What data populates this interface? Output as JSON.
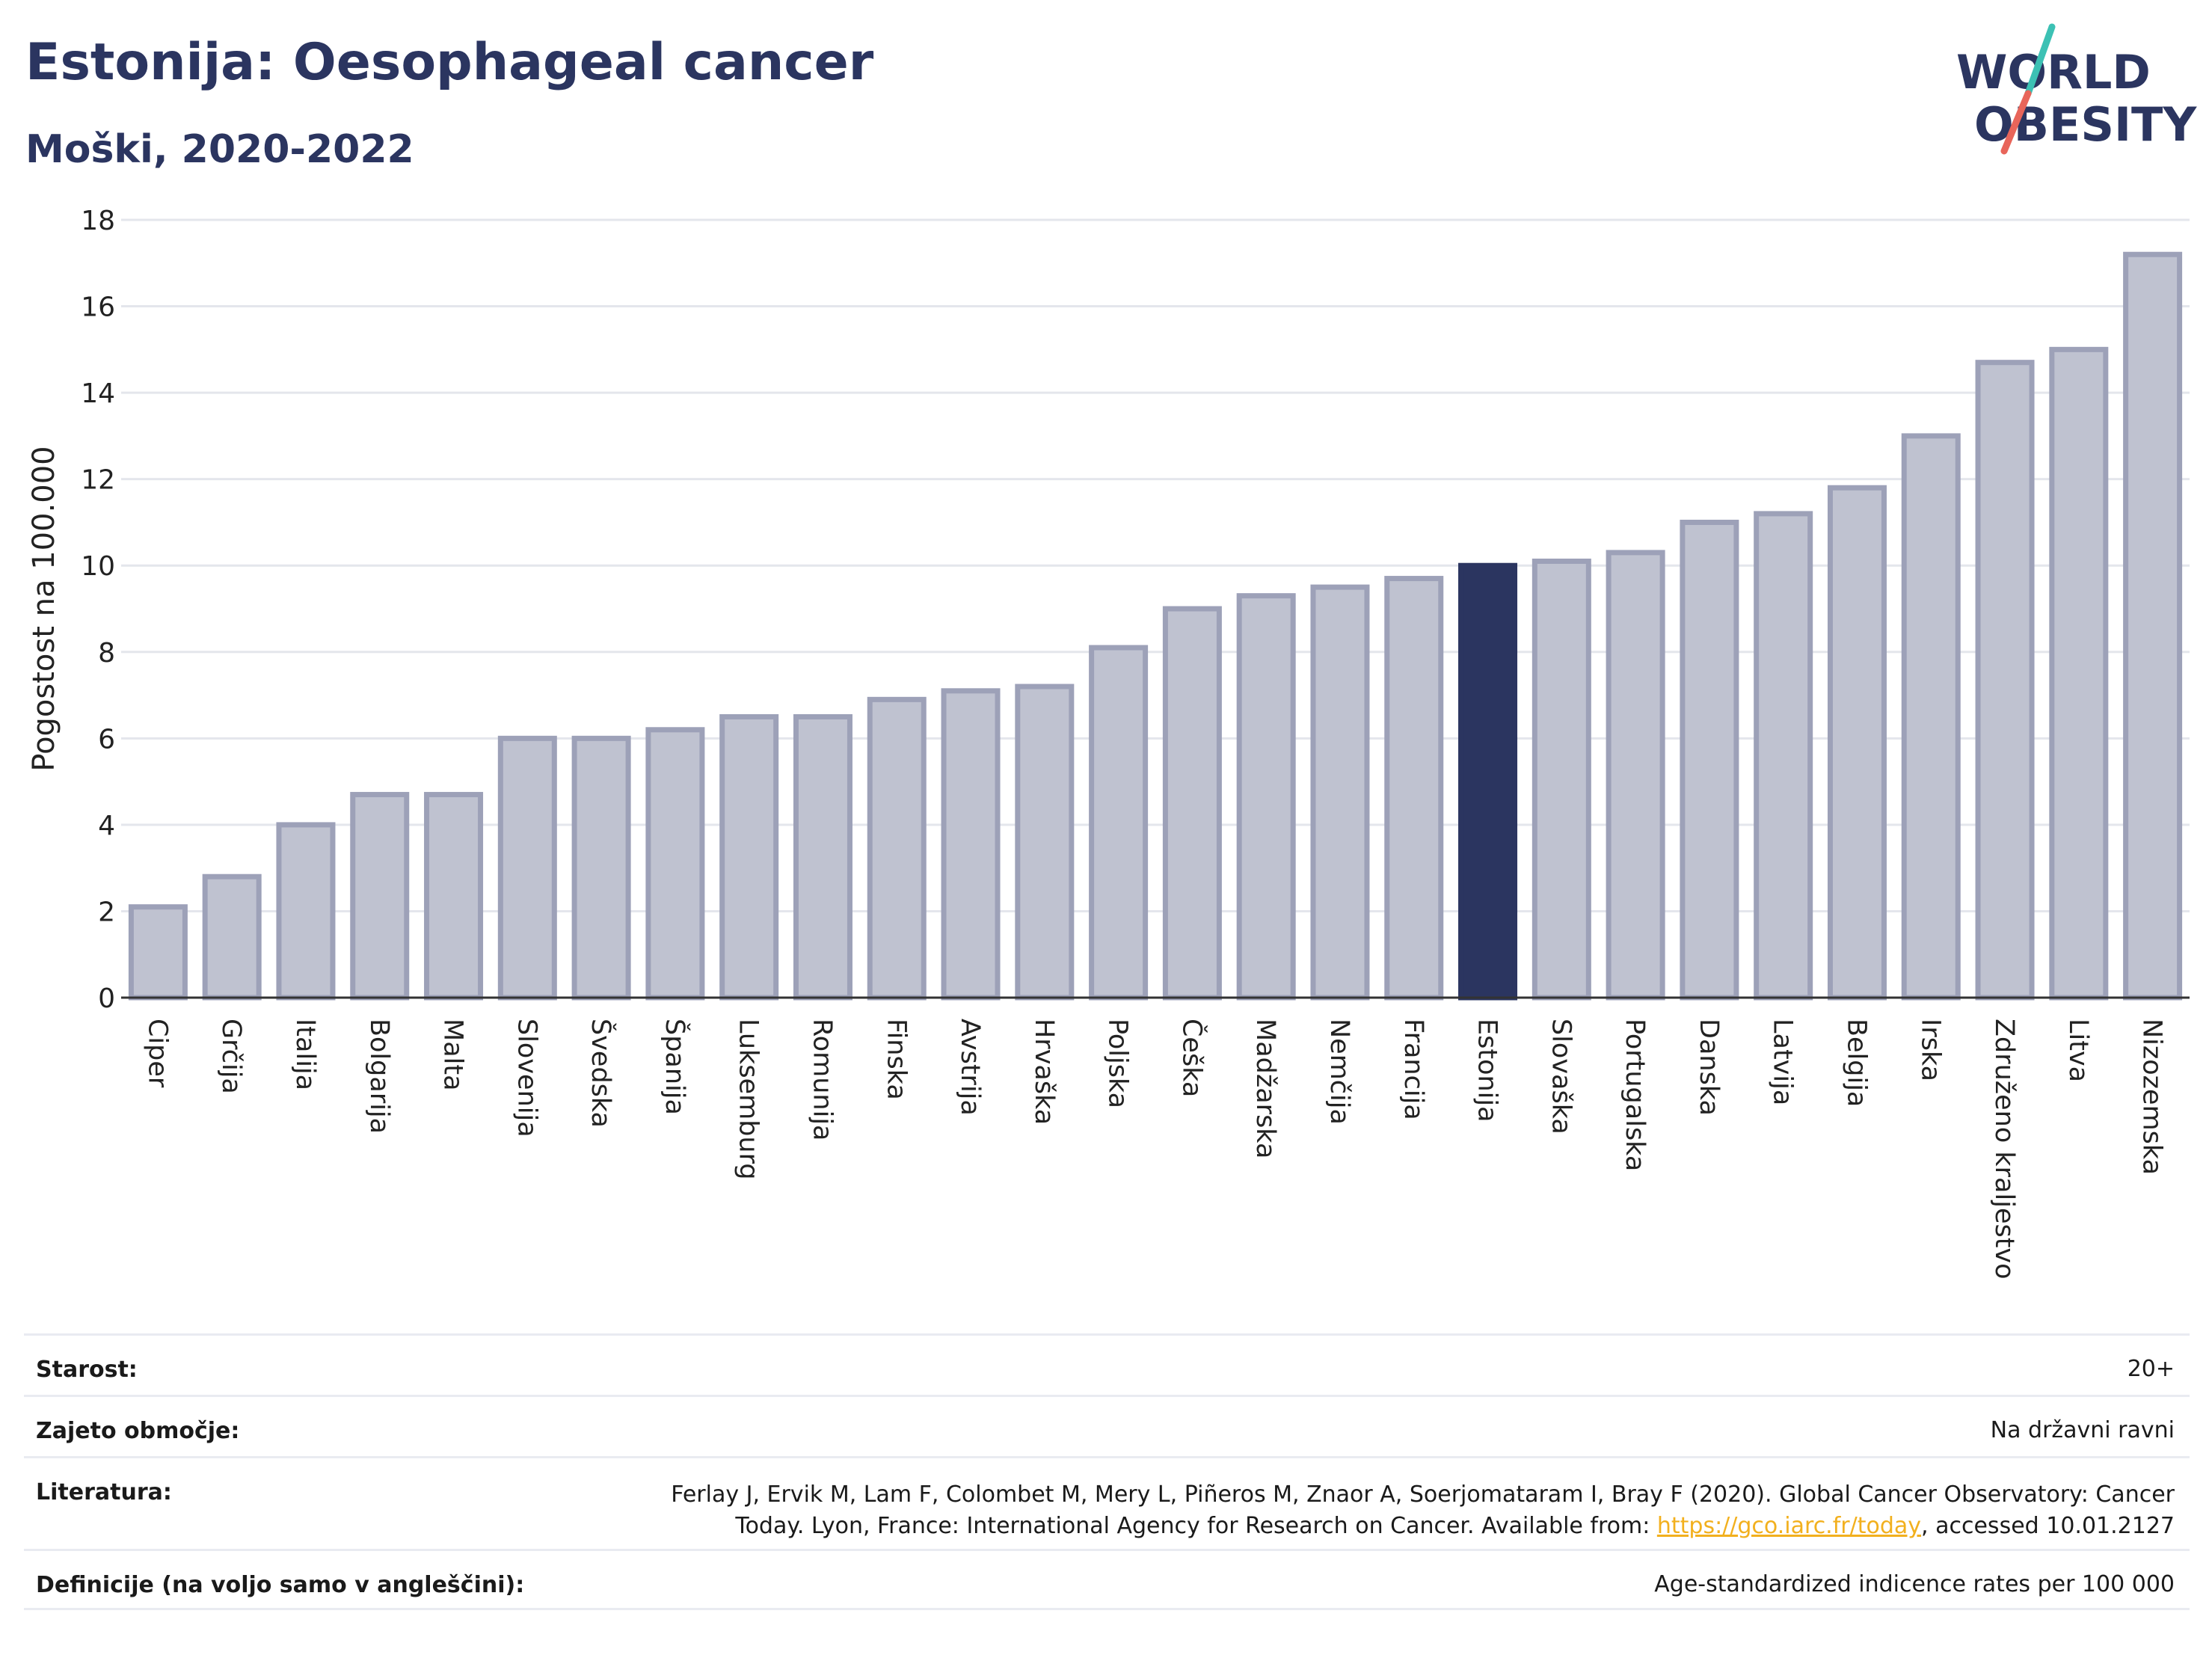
{
  "header": {
    "title": "Estonija: Oesophageal cancer",
    "subtitle": "Moški, 2020-2022"
  },
  "logo": {
    "line1": "WORLD",
    "line2": "OBESITY",
    "text_color": "#2b3560",
    "slash_colors": [
      "#3cc1b4",
      "#e8655a"
    ]
  },
  "colors": {
    "bar_fill": "#bfc2d0",
    "bar_stroke": "#9da1b8",
    "highlight_fill": "#2b3560",
    "grid": "#e4e6ec",
    "axis": "#333333"
  },
  "chart_data": {
    "type": "bar",
    "ylabel": "Pogostost na 100.000",
    "ylim": [
      0,
      18
    ],
    "yticks": [
      0,
      2,
      4,
      6,
      8,
      10,
      12,
      14,
      16,
      18
    ],
    "grid": true,
    "highlight": "Estonija",
    "categories": [
      "Ciper",
      "Grčija",
      "Italija",
      "Bolgarija",
      "Malta",
      "Slovenija",
      "Švedska",
      "Španija",
      "Luksemburg",
      "Romunija",
      "Finska",
      "Avstrija",
      "Hrvaška",
      "Poljska",
      "Češka",
      "Madžarska",
      "Nemčija",
      "Francija",
      "Estonija",
      "Slovaška",
      "Portugalska",
      "Danska",
      "Latvija",
      "Belgija",
      "Irska",
      "Združeno kraljestvo",
      "Litva",
      "Nizozemska"
    ],
    "values": [
      2.1,
      2.8,
      4.0,
      4.7,
      4.7,
      6.0,
      6.0,
      6.2,
      6.5,
      6.5,
      6.9,
      7.1,
      7.2,
      8.1,
      9.0,
      9.3,
      9.5,
      9.7,
      10.0,
      10.1,
      10.3,
      11.0,
      11.2,
      11.8,
      13.0,
      14.7,
      15.0,
      17.2
    ]
  },
  "meta": {
    "age_label": "Starost:",
    "age_value": "20+",
    "coverage_label": "Zajeto območje:",
    "coverage_value": "Na državni ravni",
    "reference_label": "Literatura:",
    "reference_line1": "Ferlay J, Ervik M, Lam F, Colombet M, Mery L, Piñeros M, Znaor A, Soerjomataram I, Bray F (2020). Global Cancer Observatory: Cancer",
    "reference_line2_pre": "Today. Lyon, France: International Agency for Research on Cancer. Available from: ",
    "reference_link": "https://gco.iarc.fr/today",
    "reference_line2_post": ", accessed 10.01.2127",
    "definitions_label": "Definicije (na voljo samo v angleščini):",
    "definitions_value": "Age-standardized indicence rates per 100 000"
  }
}
